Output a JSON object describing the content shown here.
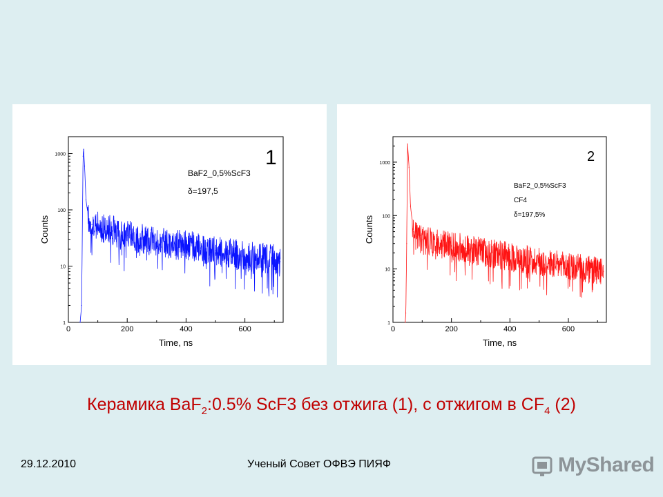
{
  "chart_data": [
    {
      "type": "scatter",
      "xlabel": "Time, ns",
      "ylabel": "Counts",
      "xlim": [
        0,
        730
      ],
      "ylim": [
        1,
        2000
      ],
      "yscale": "log",
      "xticks": [
        "0",
        "200",
        "400",
        "600"
      ],
      "yticks": [
        "1",
        "10",
        "100",
        "1000"
      ],
      "annotation_number": "1",
      "legend_lines": [
        "BaF2_0,5%ScF3",
        "δ=197,5"
      ],
      "color": "#0a14ff",
      "series": [
        {
          "x": [
            40,
            45,
            50,
            52,
            55,
            60,
            70,
            80,
            100,
            150,
            200,
            250,
            300,
            350,
            400,
            450,
            500,
            550,
            600,
            650,
            700,
            720
          ],
          "y": [
            1,
            2,
            900,
            1200,
            600,
            150,
            60,
            55,
            50,
            42,
            35,
            30,
            27,
            25,
            23,
            21,
            19,
            17,
            15,
            14,
            13,
            12
          ]
        }
      ]
    },
    {
      "type": "scatter",
      "xlabel": "Time, ns",
      "ylabel": "Counts",
      "xlim": [
        0,
        730
      ],
      "ylim": [
        1,
        3000
      ],
      "yscale": "log",
      "xticks": [
        "0",
        "200",
        "400",
        "600"
      ],
      "yticks": [
        "1",
        "10",
        "100",
        "1000"
      ],
      "annotation_number": "2",
      "legend_lines": [
        "BaF2_0,5%ScF3",
        "CF4",
        "δ=197,5%"
      ],
      "color": "#ff1414",
      "series": [
        {
          "x": [
            42,
            44,
            47,
            50,
            55,
            60,
            70,
            80,
            100,
            150,
            200,
            250,
            300,
            350,
            400,
            450,
            500,
            550,
            600,
            650,
            700,
            720
          ],
          "y": [
            1,
            1.5,
            30,
            2200,
            800,
            150,
            50,
            40,
            35,
            30,
            27,
            24,
            21,
            19,
            17,
            15,
            14,
            12,
            11,
            10,
            9,
            9
          ]
        }
      ]
    }
  ],
  "caption": {
    "part1": "Керамика BaF",
    "sub1": "2",
    "part2": ":0.5% ScF3 без отжига (1), с отжигом в CF",
    "sub2": "4",
    "part3": " (2)"
  },
  "footer": {
    "date": "29.12.2010",
    "organization": "Ученый Совет ОФВЭ ПИЯФ",
    "logo_text": "MyShared"
  }
}
